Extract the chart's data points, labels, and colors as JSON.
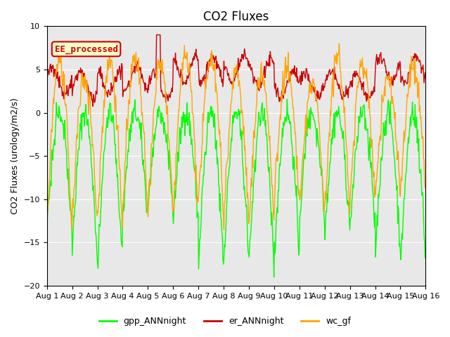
{
  "title": "CO2 Fluxes",
  "ylabel": "CO2 Fluxes (urology/m2/s)",
  "xlabel": "",
  "ylim": [
    -20,
    10
  ],
  "x_tick_labels": [
    "Aug 1",
    "Aug 2",
    "Aug 3",
    "Aug 4",
    "Aug 5",
    "Aug 6",
    "Aug 7",
    "Aug 8",
    "Aug 9",
    "Aug 10",
    "Aug 11",
    "Aug 12",
    "Aug 13",
    "Aug 14",
    "Aug 15",
    "Aug 16"
  ],
  "yticks": [
    -20,
    -15,
    -10,
    -5,
    0,
    5,
    10
  ],
  "line_colors": {
    "gpp": "#00ff00",
    "er": "#cc0000",
    "wc": "#ffa500"
  },
  "line_widths": {
    "gpp": 1.0,
    "er": 1.0,
    "wc": 1.0
  },
  "bg_color": "#e8e8e8",
  "legend_label": "EE_processed",
  "legend_box_color": "#ffffcc",
  "legend_box_edge": "#cc0000",
  "bottom_legend": [
    "gpp_ANNnight",
    "er_ANNnight",
    "wc_gf"
  ],
  "title_fontsize": 12,
  "label_fontsize": 9,
  "tick_fontsize": 8,
  "seed": 42,
  "n_days": 15,
  "pts_per_day": 48
}
